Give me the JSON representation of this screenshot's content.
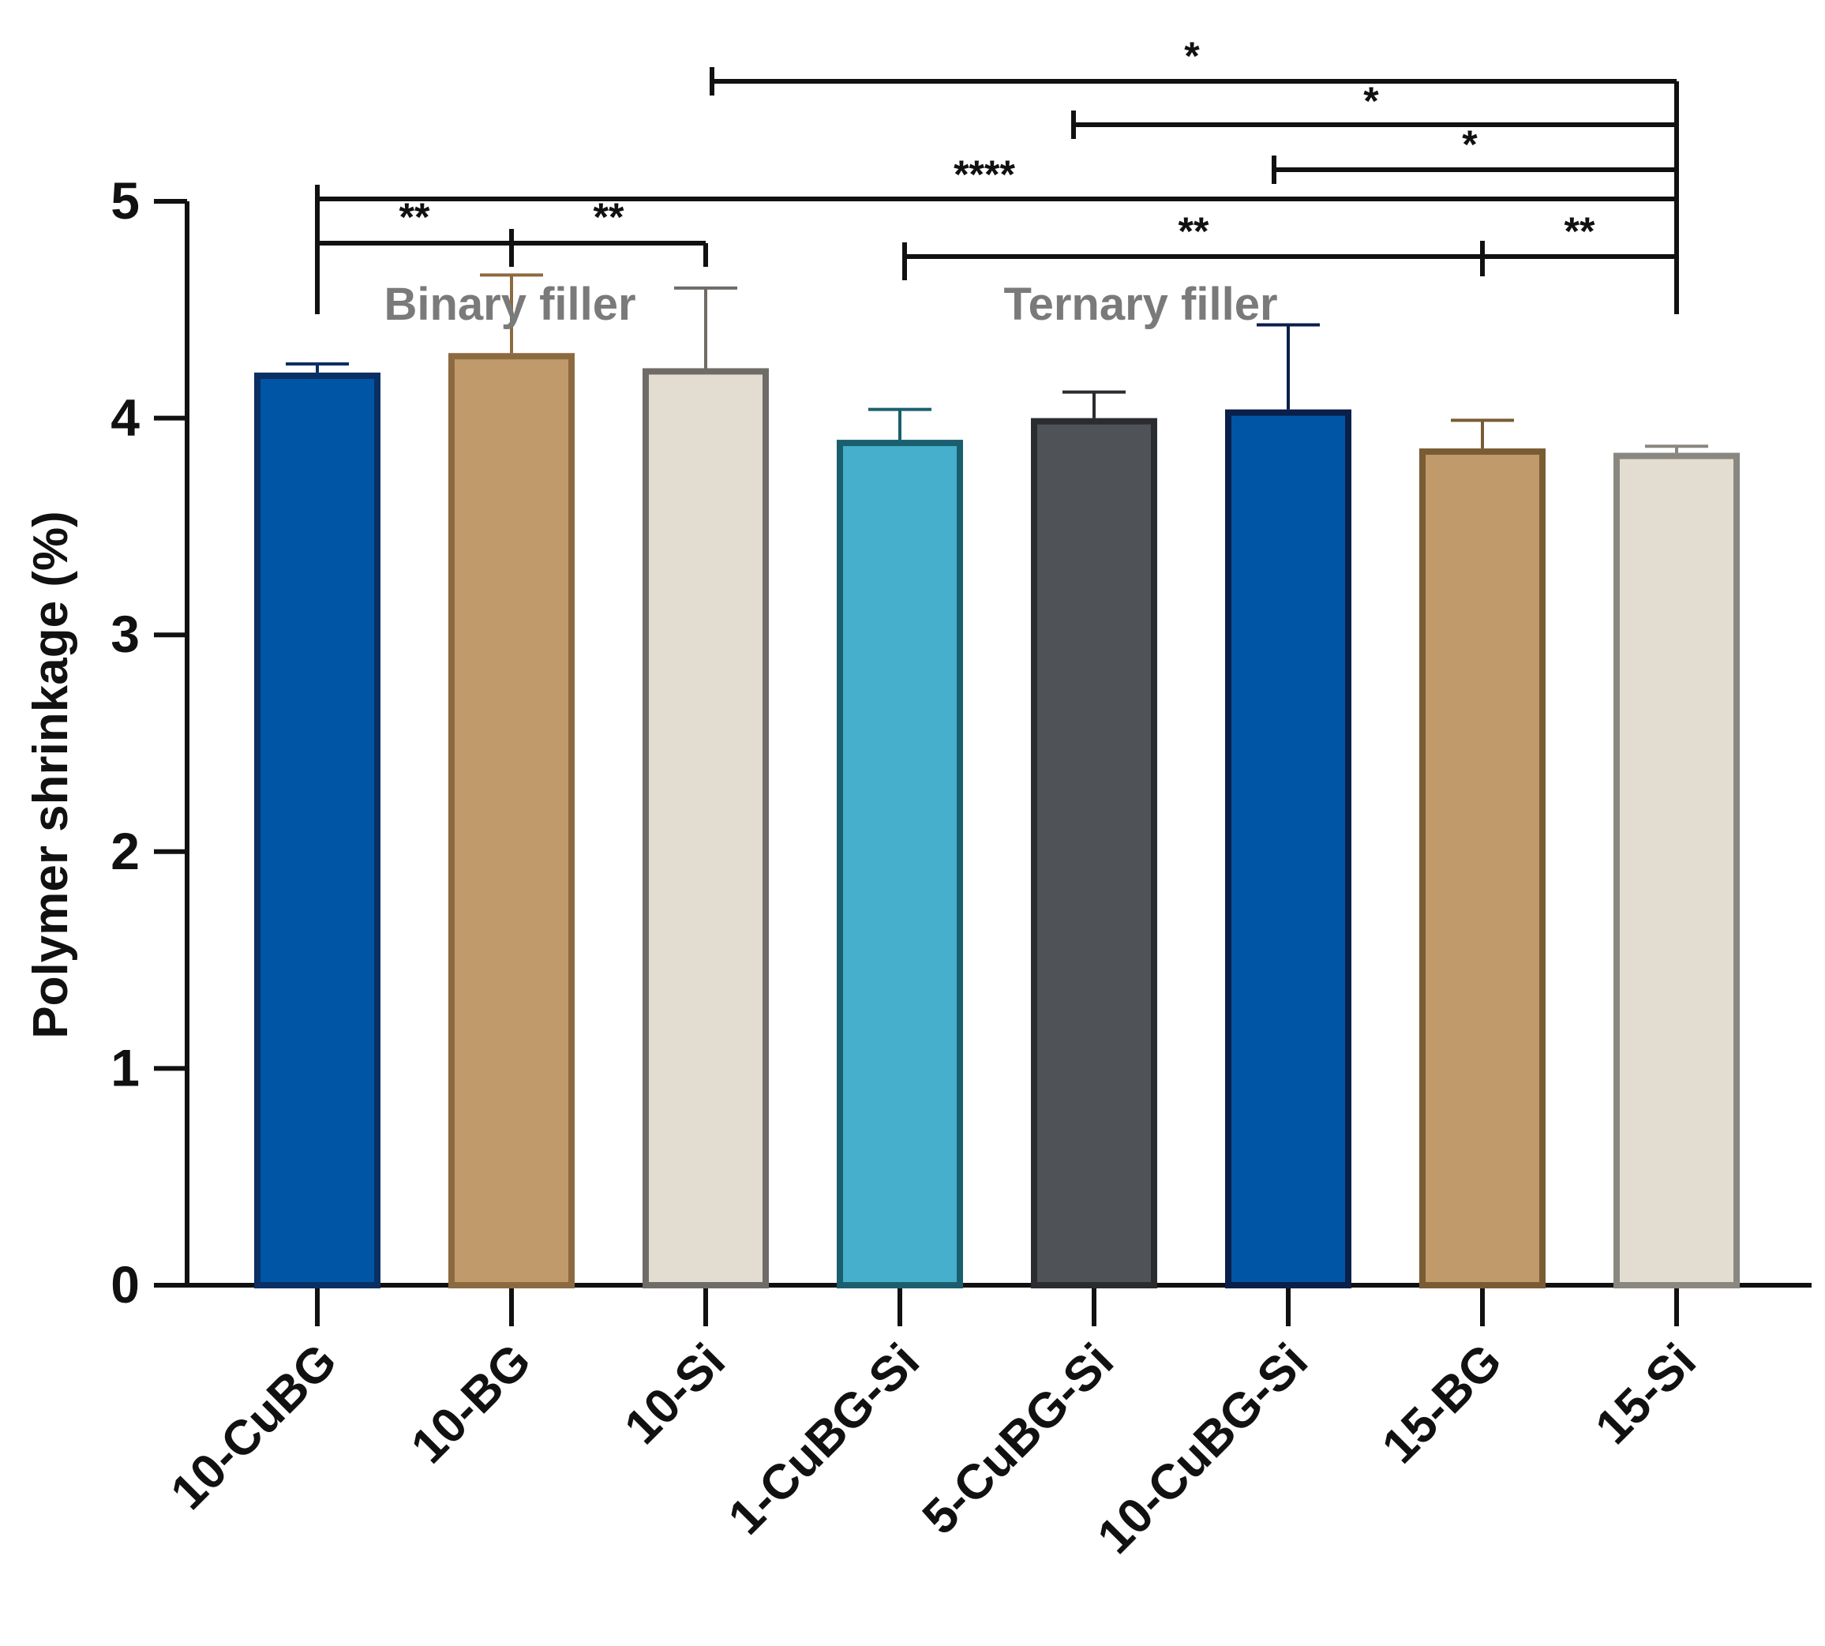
{
  "chart_data": {
    "type": "bar",
    "title": "",
    "xlabel": "",
    "ylabel": "Polymer shrinkage (%)",
    "ylim": [
      0,
      5
    ],
    "yticks": [
      0,
      1,
      2,
      3,
      4,
      5
    ],
    "categories": [
      "10-CuBG",
      "10-BG",
      "10-Si",
      "1-CuBG-Si",
      "5-CuBG-Si",
      "10-CuBG-Si",
      "15-BG",
      "15-Si"
    ],
    "values": [
      4.21,
      4.3,
      4.23,
      3.9,
      4.0,
      4.04,
      3.86,
      3.84
    ],
    "errors": [
      0.04,
      0.36,
      0.37,
      0.14,
      0.12,
      0.39,
      0.13,
      0.03
    ],
    "fills": [
      "#0055a5",
      "#c19a6b",
      "#e3ddd1",
      "#45afcc",
      "#4f5257",
      "#0055a5",
      "#c19a6b",
      "#e3ddd1"
    ],
    "strokes": [
      "#0a2f63",
      "#8c6a40",
      "#6f6b66",
      "#1b5f6e",
      "#2a2c30",
      "#0a1f4a",
      "#7a5c34",
      "#8a8680"
    ],
    "group_labels": [
      {
        "text": "Binary filler",
        "span": [
          0,
          2
        ]
      },
      {
        "text": "Ternary filler",
        "span": [
          3,
          7
        ]
      }
    ],
    "significance": [
      {
        "from": 2,
        "to": 7,
        "label": "*"
      },
      {
        "from": 4,
        "to": 7,
        "label": "*"
      },
      {
        "from": 5,
        "to": 7,
        "label": "*"
      },
      {
        "from": 0,
        "to": 7,
        "label": "****"
      },
      {
        "from": 0,
        "to": 1,
        "label": "**"
      },
      {
        "from": 1,
        "to": 2,
        "label": "**"
      },
      {
        "from": 3,
        "to": 6,
        "label": "**"
      },
      {
        "from": 6,
        "to": 7,
        "label": "**"
      }
    ]
  }
}
